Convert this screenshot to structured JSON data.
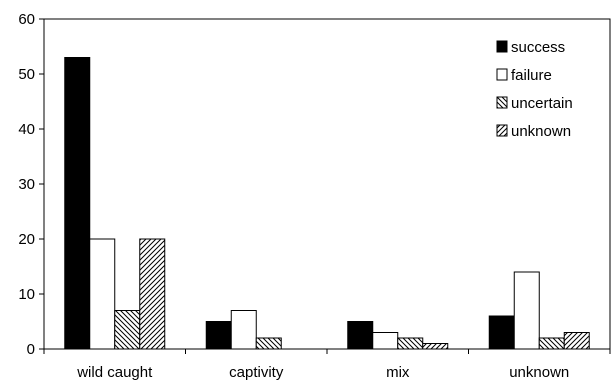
{
  "chart_data": {
    "type": "bar",
    "title": "",
    "xlabel": "",
    "ylabel": "",
    "ylim": [
      0,
      60
    ],
    "yticks": [
      0,
      10,
      20,
      30,
      40,
      50,
      60
    ],
    "grid": false,
    "legend_position": "top-right",
    "categories": [
      "wild caught",
      "captivity",
      "mix",
      "unknown"
    ],
    "series": [
      {
        "name": "success",
        "values": [
          53,
          5,
          5,
          6
        ],
        "fill": "solid",
        "color": "#000000"
      },
      {
        "name": "failure",
        "values": [
          20,
          7,
          3,
          14
        ],
        "fill": "none",
        "color": "#ffffff"
      },
      {
        "name": "uncertain",
        "values": [
          7,
          2,
          2,
          2
        ],
        "fill": "backslash",
        "color": "#000000"
      },
      {
        "name": "unknown",
        "values": [
          20,
          0,
          1,
          3
        ],
        "fill": "slash",
        "color": "#000000"
      }
    ]
  }
}
